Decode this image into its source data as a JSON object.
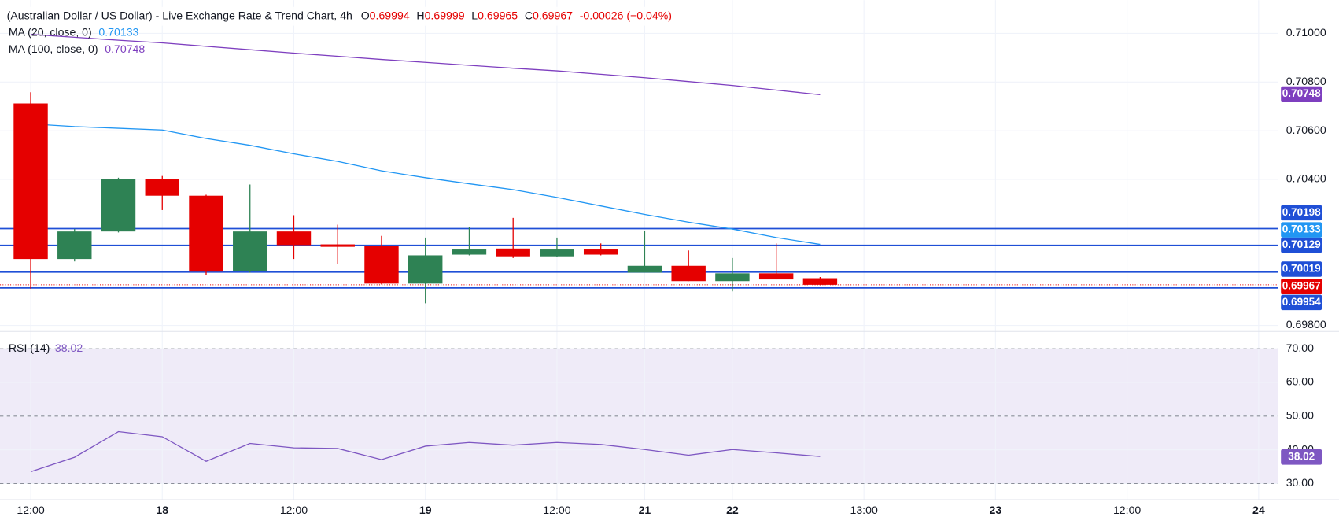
{
  "chart_data": [
    {
      "type": "candlestick",
      "title": "(Australian Dollar / US Dollar) - Live Exchange Rate & Trend Chart, 4h",
      "ohlc_keys": [
        "O",
        "H",
        "L",
        "C"
      ],
      "change": "-0.00026 (−0.04%)",
      "x": [
        0,
        1,
        2,
        3,
        4,
        5,
        6,
        7,
        8,
        9,
        10,
        11,
        12,
        13,
        14,
        15,
        16,
        17,
        18
      ],
      "xlim": [
        -0.7,
        28.45
      ],
      "xticks": [
        {
          "value": 0,
          "label": "12:00"
        },
        {
          "value": 3,
          "label": "18"
        },
        {
          "value": 6,
          "label": "12:00"
        },
        {
          "value": 9,
          "label": "19"
        },
        {
          "value": 12,
          "label": "12:00"
        },
        {
          "value": 14,
          "label": "21"
        },
        {
          "value": 16,
          "label": "22"
        },
        {
          "value": 19,
          "label": "13:00"
        },
        {
          "value": 22,
          "label": "23"
        },
        {
          "value": 25,
          "label": "12:00"
        },
        {
          "value": 28,
          "label": "24"
        }
      ],
      "open": [
        0.70712,
        0.70073,
        0.70186,
        0.704,
        0.70333,
        0.70024,
        0.70186,
        0.70133,
        0.70126,
        0.69972,
        0.70091,
        0.70116,
        0.70084,
        0.70112,
        0.70017,
        0.70045,
        0.69982,
        0.70014,
        0.69994
      ],
      "high": [
        0.70758,
        0.70196,
        0.70407,
        0.70414,
        0.70337,
        0.70379,
        0.70253,
        0.70214,
        0.70168,
        0.70161,
        0.70203,
        0.70242,
        0.70161,
        0.70137,
        0.70189,
        0.70108,
        0.70077,
        0.70137,
        0.69999
      ],
      "low": [
        0.69951,
        0.70063,
        0.70182,
        0.70274,
        0.70007,
        0.70017,
        0.70073,
        0.70052,
        0.69968,
        0.69891,
        0.70088,
        0.70077,
        0.70081,
        0.70088,
        0.70017,
        0.69982,
        0.6994,
        0.69989,
        0.69965
      ],
      "close": [
        0.70073,
        0.70186,
        0.704,
        0.70333,
        0.70021,
        0.70186,
        0.7013,
        0.70123,
        0.69972,
        0.70088,
        0.70112,
        0.70084,
        0.70112,
        0.70091,
        0.70045,
        0.69982,
        0.70014,
        0.69989,
        0.69967
      ],
      "up_color": "#2e8254",
      "down_color": "#e50000",
      "series": [
        {
          "name": "MA (20, close, 0)",
          "color": "#2196f3",
          "values": [
            0.70628,
            0.70617,
            0.7061,
            0.70603,
            0.70568,
            0.7054,
            0.70505,
            0.70474,
            0.70435,
            0.70407,
            0.70382,
            0.70358,
            0.70326,
            0.70291,
            0.70256,
            0.70224,
            0.70196,
            0.70161,
            0.70133
          ]
        },
        {
          "name": "MA (100, close, 0)",
          "color": "#7e3fbf",
          "values": [
            0.70996,
            0.70984,
            0.70972,
            0.70961,
            0.70947,
            0.70933,
            0.70919,
            0.70906,
            0.70893,
            0.70881,
            0.70869,
            0.70857,
            0.70846,
            0.70832,
            0.70818,
            0.70802,
            0.70786,
            0.70767,
            0.70748
          ]
        }
      ],
      "levels": [
        0.70198,
        0.70129,
        0.70019,
        0.69954
      ],
      "level_color": "#1f4fd6",
      "ylim": [
        0.69775,
        0.71137
      ],
      "yticks": [
        {
          "value": 0.698,
          "label": "0.69800"
        },
        {
          "value": 0.704,
          "label": "0.70400"
        },
        {
          "value": 0.706,
          "label": "0.70600"
        },
        {
          "value": 0.708,
          "label": "0.70800"
        },
        {
          "value": 0.71,
          "label": "0.71000"
        }
      ],
      "grid": true
    },
    {
      "type": "line",
      "name": "RSI (14)",
      "color": "#7e57c2",
      "x": [
        0,
        1,
        2,
        3,
        4,
        5,
        6,
        7,
        8,
        9,
        10,
        11,
        12,
        13,
        14,
        15,
        16,
        17,
        18
      ],
      "values": [
        33.5,
        37.8,
        45.4,
        43.9,
        36.6,
        41.9,
        40.6,
        40.4,
        37.1,
        41.1,
        42.2,
        41.4,
        42.2,
        41.6,
        40.1,
        38.4,
        40.1,
        39.1,
        38.02
      ],
      "ylim": [
        25.2,
        75.1
      ],
      "yticks": [
        {
          "value": 30,
          "label": "30.00"
        },
        {
          "value": 40,
          "label": "40.00"
        },
        {
          "value": 50,
          "label": "50.00"
        },
        {
          "value": 60,
          "label": "60.00"
        },
        {
          "value": 70,
          "label": "70.00"
        }
      ],
      "band": [
        30,
        70
      ],
      "band_color": "#efebf8",
      "dashed_levels": [
        30,
        50,
        70
      ]
    }
  ]
}
